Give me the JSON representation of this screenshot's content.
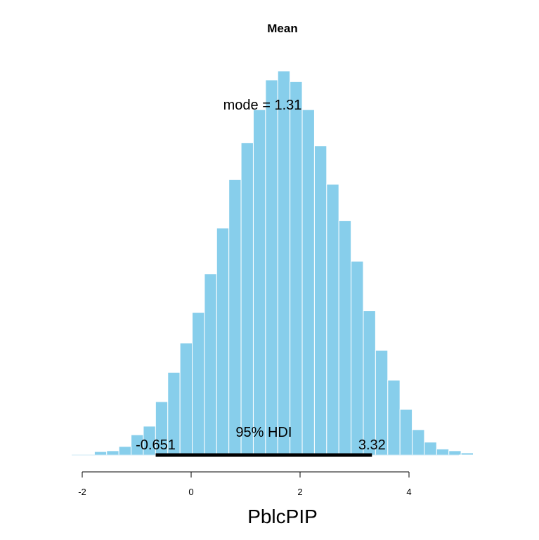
{
  "chart_data": {
    "type": "bar",
    "title": "Mean",
    "xlabel": "PblcPIP",
    "ylabel": "",
    "grid": false,
    "xlim": [
      -2.1,
      4.85
    ],
    "x_ticks": [
      "-2",
      "0",
      "2",
      "4"
    ],
    "bin_start": -2.0,
    "bin_width": 0.2244,
    "values": [
      0,
      0.8,
      1.0,
      2.0,
      4.7,
      6.7,
      12.4,
      19.2,
      26.0,
      33.1,
      42.1,
      52.7,
      64.0,
      72.5,
      80.2,
      87.1,
      89.2,
      86.7,
      80.2,
      71.8,
      62.9,
      54.4,
      45.0,
      33.5,
      24.3,
      17.4,
      10.6,
      5.9,
      3.0,
      1.4,
      1.0,
      0.5
    ],
    "ylim": [
      0,
      100
    ],
    "bar_color": "#87ceeb",
    "bar_edge_color": "#ffffff",
    "hdi": {
      "low": -0.651,
      "high": 3.32,
      "label": "95% HDI",
      "low_label": "-0.651",
      "high_label": "3.32"
    },
    "mode": {
      "value": 1.31,
      "label": "mode = 1.31"
    }
  }
}
